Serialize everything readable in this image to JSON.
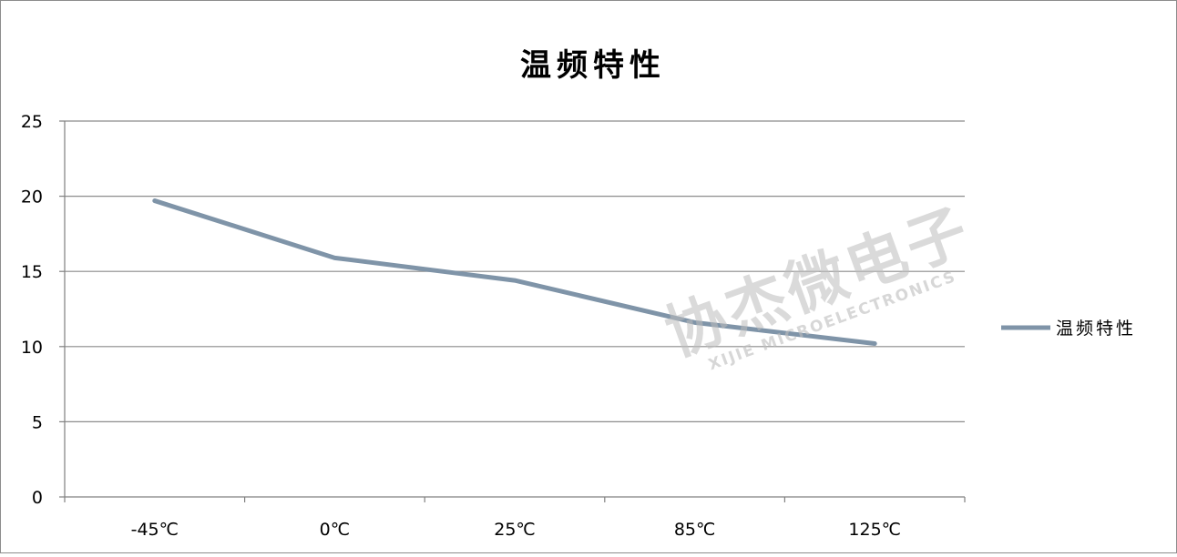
{
  "chart_data": {
    "type": "line",
    "title": "温频特性",
    "categories": [
      "-45℃",
      "0℃",
      "25℃",
      "85℃",
      "125℃"
    ],
    "series": [
      {
        "name": "温频特性",
        "values": [
          19.7,
          15.9,
          14.4,
          11.6,
          10.2
        ],
        "color": "#7f94a8"
      }
    ],
    "ylim": [
      0,
      25
    ],
    "yticks": [
      0,
      5,
      10,
      15,
      20,
      25
    ],
    "grid": true,
    "legend": "right"
  },
  "watermark": {
    "main": "协杰微电子",
    "sub": "XIJIE MICROELECTRONICS"
  },
  "colors": {
    "axis": "#808080",
    "grid": "#8c8c8c",
    "series": "#7f94a8"
  }
}
